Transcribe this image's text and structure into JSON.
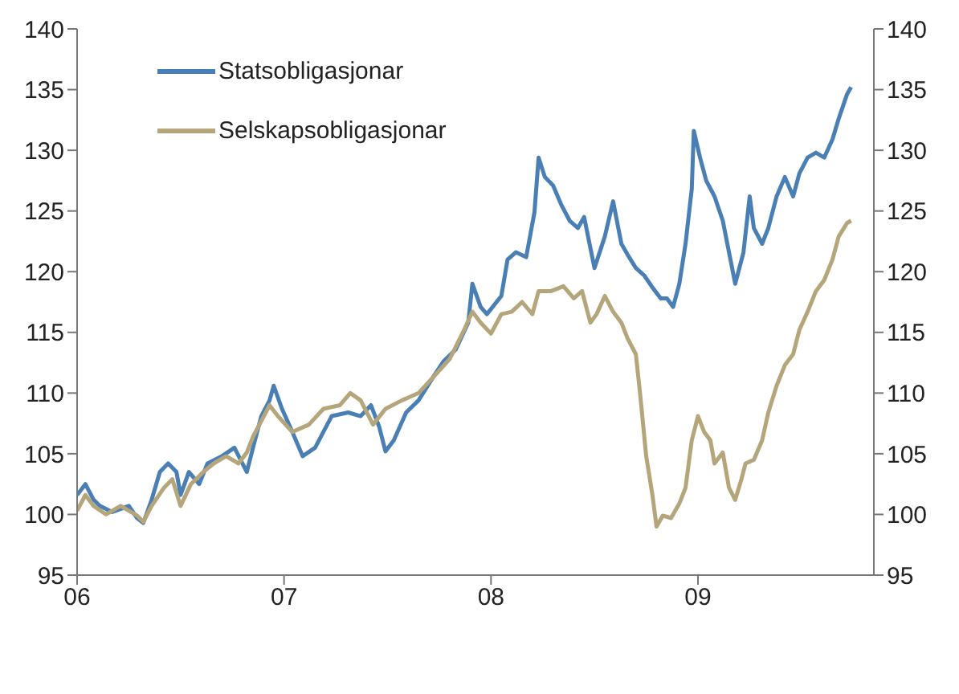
{
  "chart_data": {
    "type": "line",
    "xlim": [
      2006,
      2009.85
    ],
    "xticks": [
      {
        "value": 2006,
        "label": "06"
      },
      {
        "value": 2007,
        "label": "07"
      },
      {
        "value": 2008,
        "label": "08"
      },
      {
        "value": 2009,
        "label": "09"
      }
    ],
    "ylim": [
      95,
      140
    ],
    "yticks": [
      95,
      100,
      105,
      110,
      115,
      120,
      125,
      130,
      135,
      140
    ],
    "y2lim": [
      95,
      140
    ],
    "y2ticks": [
      95,
      100,
      105,
      110,
      115,
      120,
      125,
      130,
      135,
      140
    ],
    "legend": "top left",
    "marker": "none",
    "line_style": "solid",
    "series": [
      {
        "name": "Statsobligasjonar",
        "color": "#4a7fb5",
        "x": [
          2006.0,
          2006.04,
          2006.08,
          2006.11,
          2006.17,
          2006.25,
          2006.29,
          2006.32,
          2006.36,
          2006.4,
          2006.44,
          2006.48,
          2006.5,
          2006.54,
          2006.59,
          2006.63,
          2006.7,
          2006.76,
          2006.82,
          2006.85,
          2006.89,
          2006.93,
          2006.95,
          2006.99,
          2007.04,
          2007.09,
          2007.15,
          2007.23,
          2007.31,
          2007.37,
          2007.42,
          2007.46,
          2007.49,
          2007.53,
          2007.59,
          2007.65,
          2007.72,
          2007.77,
          2007.83,
          2007.89,
          2007.91,
          2007.95,
          2007.98,
          2008.05,
          2008.08,
          2008.12,
          2008.17,
          2008.21,
          2008.23,
          2008.26,
          2008.3,
          2008.34,
          2008.38,
          2008.42,
          2008.45,
          2008.5,
          2008.55,
          2008.59,
          2008.63,
          2008.66,
          2008.7,
          2008.74,
          2008.78,
          2008.82,
          2008.85,
          2008.88,
          2008.91,
          2008.94,
          2008.97,
          2008.98,
          2009.01,
          2009.04,
          2009.08,
          2009.12,
          2009.15,
          2009.18,
          2009.22,
          2009.25,
          2009.27,
          2009.31,
          2009.34,
          2009.38,
          2009.42,
          2009.46,
          2009.49,
          2009.53,
          2009.57,
          2009.61,
          2009.65,
          2009.68,
          2009.72,
          2009.74
        ],
        "values": [
          101.6,
          102.5,
          101.2,
          100.7,
          100.2,
          100.7,
          99.7,
          99.3,
          101.2,
          103.5,
          104.2,
          103.5,
          101.6,
          103.5,
          102.5,
          104.2,
          104.8,
          105.5,
          103.5,
          105.5,
          108.1,
          109.4,
          110.6,
          108.7,
          106.8,
          104.8,
          105.5,
          108.1,
          108.4,
          108.1,
          109.0,
          107.2,
          105.2,
          106.1,
          108.4,
          109.4,
          111.3,
          112.6,
          113.6,
          115.8,
          119.0,
          117.1,
          116.5,
          118.0,
          121.0,
          121.6,
          121.2,
          124.9,
          129.4,
          127.8,
          127.1,
          125.5,
          124.2,
          123.6,
          124.5,
          120.3,
          122.9,
          125.8,
          122.3,
          121.4,
          120.3,
          119.7,
          118.7,
          117.8,
          117.8,
          117.1,
          119.0,
          122.3,
          126.8,
          131.6,
          129.4,
          127.5,
          126.2,
          124.2,
          121.6,
          119.0,
          121.6,
          126.2,
          123.6,
          122.3,
          123.6,
          126.2,
          127.8,
          126.2,
          128.1,
          129.4,
          129.8,
          129.4,
          130.9,
          132.6,
          134.6,
          135.2
        ]
      },
      {
        "name": "Selskapsobligasjonar",
        "color": "#b5a57a",
        "x": [
          2006.0,
          2006.04,
          2006.08,
          2006.14,
          2006.21,
          2006.29,
          2006.32,
          2006.36,
          2006.42,
          2006.46,
          2006.5,
          2006.55,
          2006.61,
          2006.66,
          2006.72,
          2006.78,
          2006.82,
          2006.85,
          2006.93,
          2006.97,
          2007.04,
          2007.12,
          2007.19,
          2007.27,
          2007.32,
          2007.37,
          2007.43,
          2007.49,
          2007.57,
          2007.65,
          2007.72,
          2007.8,
          2007.87,
          2007.91,
          2007.95,
          2008.0,
          2008.05,
          2008.1,
          2008.15,
          2008.2,
          2008.23,
          2008.29,
          2008.35,
          2008.4,
          2008.44,
          2008.48,
          2008.51,
          2008.55,
          2008.59,
          2008.63,
          2008.66,
          2008.7,
          2008.72,
          2008.75,
          2008.78,
          2008.8,
          2008.83,
          2008.87,
          2008.91,
          2008.94,
          2008.97,
          2009.0,
          2009.03,
          2009.06,
          2009.08,
          2009.12,
          2009.15,
          2009.18,
          2009.21,
          2009.23,
          2009.27,
          2009.31,
          2009.34,
          2009.38,
          2009.42,
          2009.46,
          2009.49,
          2009.53,
          2009.57,
          2009.61,
          2009.65,
          2009.68,
          2009.72,
          2009.74
        ],
        "values": [
          100.3,
          101.6,
          100.7,
          100.0,
          100.7,
          99.9,
          99.4,
          100.7,
          102.2,
          102.9,
          100.7,
          102.5,
          103.5,
          104.2,
          104.8,
          104.2,
          105.1,
          106.4,
          109.0,
          108.1,
          106.8,
          107.4,
          108.7,
          109.0,
          110.0,
          109.4,
          107.4,
          108.7,
          109.4,
          110.0,
          111.3,
          112.8,
          115.2,
          116.7,
          115.8,
          114.9,
          116.5,
          116.7,
          117.5,
          116.5,
          118.4,
          118.4,
          118.8,
          117.8,
          118.4,
          115.8,
          116.5,
          118.0,
          116.7,
          115.8,
          114.5,
          113.2,
          110.0,
          104.8,
          101.6,
          99.0,
          99.9,
          99.7,
          100.9,
          102.2,
          106.1,
          108.1,
          106.8,
          106.1,
          104.2,
          105.1,
          102.2,
          101.2,
          102.9,
          104.2,
          104.5,
          106.1,
          108.4,
          110.6,
          112.3,
          113.2,
          115.2,
          116.7,
          118.4,
          119.3,
          121.0,
          122.9,
          124.0,
          124.2
        ]
      }
    ]
  }
}
